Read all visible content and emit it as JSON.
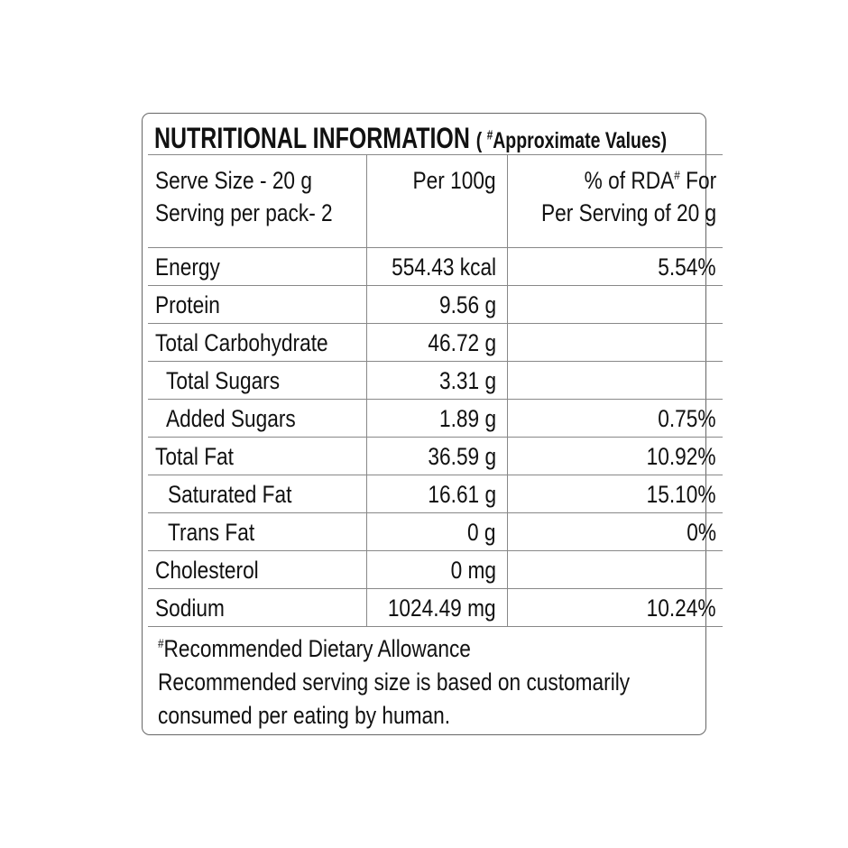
{
  "title": {
    "main": "NUTRITIONAL INFORMATION",
    "open": "(",
    "mark": "#",
    "sub": "Approximate Values)"
  },
  "header": {
    "col1_line1": "Serve Size - 20 g",
    "col1_line2": "Serving per pack- 2",
    "col2": "Per 100g",
    "col3_line1_a": "% of RDA",
    "col3_mark": "#",
    "col3_line1_b": " For",
    "col3_line2": "Per Serving of 20 g"
  },
  "rows": [
    {
      "name": "Energy",
      "per100": "554.43 kcal",
      "rda": "5.54%"
    },
    {
      "name": "Protein",
      "per100": "9.56 g",
      "rda": ""
    },
    {
      "name": "Total Carbohydrate",
      "per100": "46.72 g",
      "rda": ""
    },
    {
      "name": "Total Sugars",
      "per100": "3.31 g",
      "rda": ""
    },
    {
      "name": "Added Sugars",
      "per100": "1.89 g",
      "rda": "0.75%"
    },
    {
      "name": "Total Fat",
      "per100": "36.59 g",
      "rda": "10.92%"
    },
    {
      "name": "Saturated Fat",
      "per100": "16.61 g",
      "rda": "15.10%"
    },
    {
      "name": "Trans Fat",
      "per100": "0 g",
      "rda": "0%"
    },
    {
      "name": "Cholesterol",
      "per100": "0 mg",
      "rda": ""
    },
    {
      "name": "Sodium",
      "per100": "1024.49 mg",
      "rda": "10.24%"
    }
  ],
  "footer": {
    "mark": "#",
    "line1": "Recommended Dietary Allowance",
    "line2": "Recommended serving size is based on customarily",
    "line3": "consumed per eating by human."
  }
}
